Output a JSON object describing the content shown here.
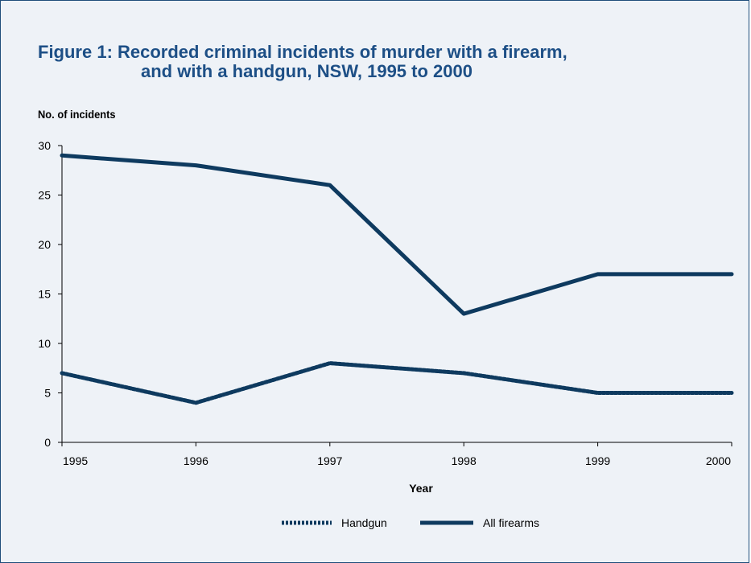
{
  "chart_data": {
    "type": "line",
    "title_line1": "Figure 1:  Recorded criminal incidents of murder with a firearm,",
    "title_line2": "and with a handgun, NSW, 1995 to 2000",
    "ylabel": "No. of incidents",
    "xlabel": "Year",
    "categories": [
      "1995",
      "1996",
      "1997",
      "1998",
      "1999",
      "2000"
    ],
    "ylim": [
      0,
      30
    ],
    "yticks": [
      0,
      5,
      10,
      15,
      20,
      25,
      30
    ],
    "grid": false,
    "legend_position": "bottom",
    "series": [
      {
        "name": "Handgun",
        "values": [
          7,
          4,
          8,
          7,
          5,
          5
        ],
        "style": "dotted",
        "color": "#0e3a5f"
      },
      {
        "name": "All firearms",
        "values": [
          29,
          28,
          26,
          13,
          17,
          17
        ],
        "style": "solid",
        "color": "#0e3a5f"
      }
    ]
  },
  "colors": {
    "title": "#1d4f86",
    "line": "#0e3a5f",
    "frame": "#1f4d7a",
    "background": "#eef2f7"
  }
}
